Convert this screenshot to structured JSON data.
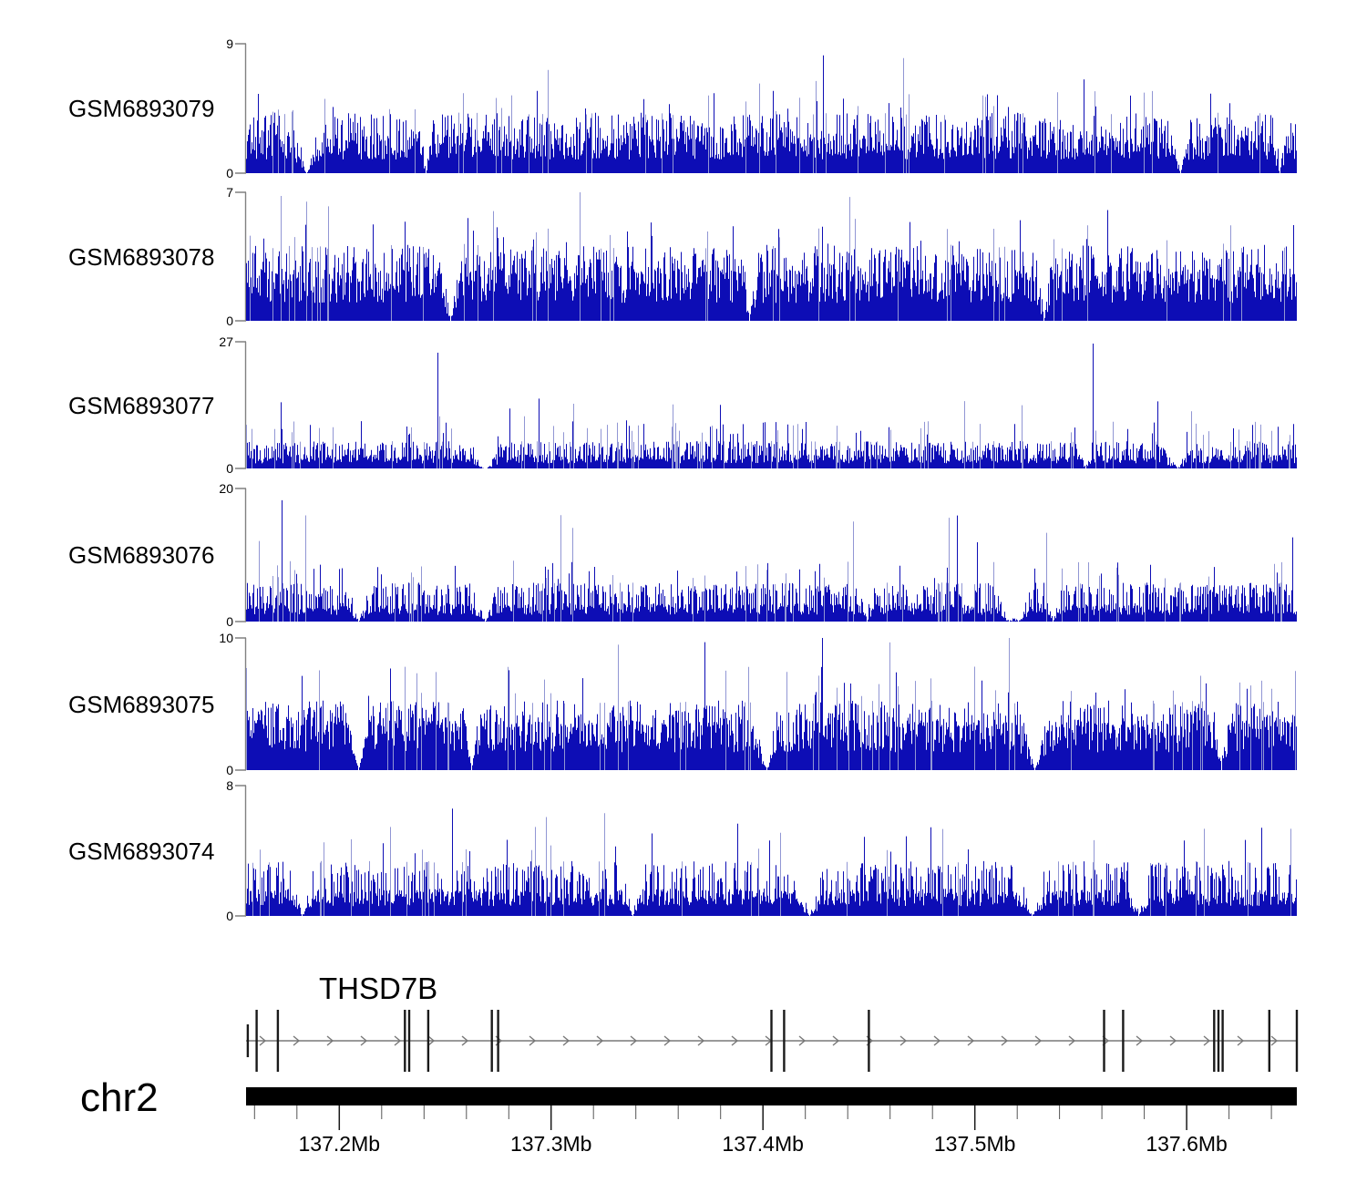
{
  "chart_data": {
    "type": "area",
    "subtype": "genome-browser-coverage-tracks",
    "title": "",
    "legend": "none",
    "grid": false,
    "genome": {
      "chromosome": "chr2",
      "xlim_mb": [
        137.156,
        137.652
      ],
      "axis_major_ticks": [
        {
          "value_mb": 137.2,
          "label": "137.2Mb"
        },
        {
          "value_mb": 137.3,
          "label": "137.3Mb"
        },
        {
          "value_mb": 137.4,
          "label": "137.4Mb"
        },
        {
          "value_mb": 137.5,
          "label": "137.5Mb"
        },
        {
          "value_mb": 137.6,
          "label": "137.6Mb"
        }
      ],
      "axis_minor_tick_start_mb": 137.16,
      "axis_minor_tick_step_mb": 0.02,
      "axis_minor_tick_end_mb": 137.64
    },
    "coverage_tracks": [
      {
        "sample": "GSM6893079",
        "ylim": [
          0,
          9
        ],
        "yticks": [
          0,
          9
        ],
        "pattern": {
          "seed": 79,
          "baseline_frac": 0.21,
          "mid": {
            "frac": 0.4,
            "p": 0.33
          },
          "spike": {
            "frac": 0.56,
            "p": 0.055
          },
          "high_spike": {
            "frac": 0.78,
            "p": 0.006
          },
          "max_spike_p": 0.0015,
          "zero_dips": 4
        }
      },
      {
        "sample": "GSM6893078",
        "ylim": [
          0,
          7
        ],
        "yticks": [
          0,
          7
        ],
        "pattern": {
          "seed": 78,
          "baseline_frac": 0.28,
          "mid": {
            "frac": 0.5,
            "p": 0.38
          },
          "spike": {
            "frac": 0.7,
            "p": 0.05
          },
          "high_spike": {
            "frac": 0.88,
            "p": 0.008
          },
          "max_spike_p": 0.002,
          "zero_dips": 3
        }
      },
      {
        "sample": "GSM6893077",
        "ylim": [
          0,
          27
        ],
        "yticks": [
          0,
          27
        ],
        "pattern": {
          "seed": 77,
          "baseline_frac": 0.08,
          "mid": {
            "frac": 0.185,
            "p": 0.4
          },
          "spike": {
            "frac": 0.33,
            "p": 0.07
          },
          "high_spike": {
            "frac": 0.48,
            "p": 0.012
          },
          "max_spike_p": 0.0012,
          "zero_dips": 4
        }
      },
      {
        "sample": "GSM6893076",
        "ylim": [
          0,
          20
        ],
        "yticks": [
          0,
          20
        ],
        "pattern": {
          "seed": 76,
          "baseline_frac": 0.1,
          "mid": {
            "frac": 0.25,
            "p": 0.4
          },
          "spike": {
            "frac": 0.4,
            "p": 0.055
          },
          "high_spike": {
            "frac": 0.7,
            "p": 0.007
          },
          "max_spike_p": 0.0012,
          "zero_dips": 6
        }
      },
      {
        "sample": "GSM6893075",
        "ylim": [
          0,
          10
        ],
        "yticks": [
          0,
          10
        ],
        "pattern": {
          "seed": 75,
          "baseline_frac": 0.27,
          "mid": {
            "frac": 0.45,
            "p": 0.4
          },
          "spike": {
            "frac": 0.7,
            "p": 0.045
          },
          "high_spike": {
            "frac": 1.0,
            "p": 0.004
          },
          "max_spike_p": 0.002,
          "zero_dips": 5
        }
      },
      {
        "sample": "GSM6893074",
        "ylim": [
          0,
          8
        ],
        "yticks": [
          0,
          8
        ],
        "pattern": {
          "seed": 74,
          "baseline_frac": 0.15,
          "mid": {
            "frac": 0.36,
            "p": 0.32
          },
          "spike": {
            "frac": 0.6,
            "p": 0.04
          },
          "high_spike": {
            "frac": 0.82,
            "p": 0.005
          },
          "max_spike_p": 0.0012,
          "zero_dips": 5
        }
      }
    ],
    "gene_track": {
      "gene": "THSD7B",
      "strand": "+",
      "exons_mb": [
        137.1568,
        137.161,
        137.171,
        137.231,
        137.233,
        137.242,
        137.272,
        137.275,
        137.404,
        137.41,
        137.45,
        137.561,
        137.57,
        137.613,
        137.615,
        137.617,
        137.639,
        137.652
      ],
      "short_exons_mb": [
        137.1568
      ]
    }
  },
  "colors": {
    "coverage_dark": "#0d0db5",
    "coverage_light": "#9196d4",
    "axis_line": "#808080",
    "gene_line": "#787878",
    "exon_line": "#1a1a1a",
    "ideogram": "#000000",
    "tick_minor": "#555555",
    "tick_major": "#1a1a1a",
    "text": "#000000"
  }
}
